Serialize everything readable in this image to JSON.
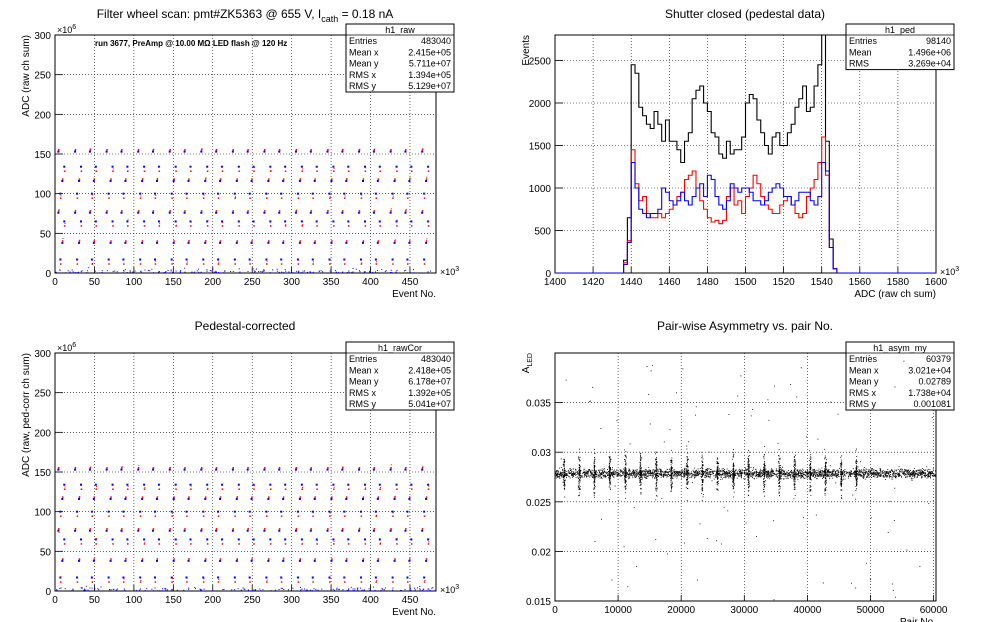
{
  "colors": {
    "black": "#000000",
    "red": "#ff0000",
    "blue": "#0000ff",
    "grid": "#000000",
    "background": "#ffffff"
  },
  "chart_data": [
    {
      "id": "raw",
      "type": "scatter",
      "title": "Filter wheel scan: pmt#ZK5363 @   655 V, I",
      "title_sub": "cath",
      "title_tail": " = 0.18 nA",
      "annotation": "run 3677, PreAmp @ 10.00 MΩ LED flash @  120 Hz",
      "xlabel": "Event No.",
      "ylabel": "ADC (raw ch sum)",
      "x_exponent": "×10",
      "x_exponent_power": "3",
      "y_exponent": "×10",
      "y_exponent_power": "6",
      "xlim": [
        0,
        483
      ],
      "ylim": [
        0,
        300
      ],
      "x_ticks": [
        0,
        50,
        100,
        150,
        200,
        250,
        300,
        350,
        400,
        450
      ],
      "y_ticks": [
        0,
        50,
        100,
        150,
        200,
        250,
        300
      ],
      "grid": true,
      "levels": [
        0,
        15,
        40,
        63,
        78,
        98,
        118,
        132,
        155
      ],
      "stats": {
        "name": "h1_raw",
        "rows": [
          {
            "label": "Entries",
            "value": "483040"
          },
          {
            "label": "Mean x",
            "value": "2.415e+05"
          },
          {
            "label": "Mean y",
            "value": "5.711e+07"
          },
          {
            "label": "RMS x",
            "value": "1.394e+05"
          },
          {
            "label": "RMS y",
            "value": "5.129e+07"
          }
        ]
      }
    },
    {
      "id": "ped",
      "type": "line",
      "title": "Shutter closed (pedestal data)",
      "xlabel": "ADC (raw ch sum)",
      "ylabel": "Events",
      "x_exponent": "×10",
      "x_exponent_power": "3",
      "xlim": [
        1400,
        1600
      ],
      "ylim": [
        0,
        2800
      ],
      "x_ticks": [
        1400,
        1420,
        1440,
        1460,
        1480,
        1500,
        1520,
        1540,
        1560,
        1580,
        1600
      ],
      "y_ticks": [
        0,
        500,
        1000,
        1500,
        2000,
        2500
      ],
      "grid": true,
      "series": [
        {
          "color": "#000000",
          "x": [
            1400,
            1412,
            1424,
            1434,
            1436,
            1438,
            1440,
            1442,
            1444,
            1446,
            1448,
            1450,
            1452,
            1454,
            1456,
            1458,
            1460,
            1462,
            1464,
            1466,
            1468,
            1470,
            1472,
            1474,
            1476,
            1478,
            1480,
            1482,
            1484,
            1486,
            1488,
            1490,
            1492,
            1494,
            1496,
            1498,
            1500,
            1502,
            1504,
            1506,
            1508,
            1510,
            1512,
            1514,
            1516,
            1518,
            1520,
            1522,
            1524,
            1526,
            1528,
            1530,
            1532,
            1534,
            1536,
            1538,
            1540,
            1542,
            1544,
            1546,
            1548,
            1550,
            1552,
            1554,
            1556,
            1600
          ],
          "y": [
            0,
            0,
            0,
            0,
            150,
            650,
            2450,
            2350,
            1950,
            1850,
            1750,
            1700,
            1900,
            1750,
            1550,
            1800,
            1550,
            1550,
            1450,
            1300,
            1550,
            1650,
            2050,
            2150,
            2200,
            2000,
            1900,
            1650,
            1600,
            1400,
            1350,
            1550,
            1400,
            1450,
            1450,
            1600,
            2000,
            2100,
            2050,
            1800,
            1650,
            1500,
            1400,
            1600,
            1650,
            1500,
            1500,
            1650,
            1750,
            1950,
            2050,
            2200,
            1900,
            1950,
            2200,
            2450,
            2800,
            1550,
            400,
            50,
            0,
            0,
            0,
            0,
            0,
            0
          ]
        },
        {
          "color": "#ff0000",
          "x": [
            1400,
            1412,
            1424,
            1434,
            1436,
            1438,
            1440,
            1442,
            1444,
            1446,
            1448,
            1450,
            1452,
            1454,
            1456,
            1458,
            1460,
            1462,
            1464,
            1466,
            1468,
            1470,
            1472,
            1474,
            1476,
            1478,
            1480,
            1482,
            1484,
            1486,
            1488,
            1490,
            1492,
            1494,
            1496,
            1498,
            1500,
            1502,
            1504,
            1506,
            1508,
            1510,
            1512,
            1514,
            1516,
            1518,
            1520,
            1522,
            1524,
            1526,
            1528,
            1530,
            1532,
            1534,
            1536,
            1538,
            1540,
            1542,
            1544,
            1546,
            1548,
            1550,
            1552,
            1554,
            1556,
            1600
          ],
          "y": [
            0,
            0,
            0,
            0,
            120,
            380,
            1450,
            1050,
            850,
            900,
            700,
            650,
            650,
            700,
            650,
            700,
            750,
            800,
            900,
            950,
            1100,
            1150,
            1200,
            1000,
            850,
            750,
            650,
            600,
            620,
            580,
            620,
            900,
            1000,
            800,
            850,
            700,
            900,
            1000,
            1150,
            1050,
            900,
            800,
            750,
            700,
            700,
            800,
            850,
            900,
            800,
            700,
            650,
            700,
            900,
            1000,
            1100,
            1300,
            1600,
            1150,
            300,
            50,
            0,
            0,
            0,
            0,
            0,
            0
          ]
        },
        {
          "color": "#0000ff",
          "x": [
            1400,
            1412,
            1424,
            1434,
            1436,
            1438,
            1440,
            1442,
            1444,
            1446,
            1448,
            1450,
            1452,
            1454,
            1456,
            1458,
            1460,
            1462,
            1464,
            1466,
            1468,
            1470,
            1472,
            1474,
            1476,
            1478,
            1480,
            1482,
            1484,
            1486,
            1488,
            1490,
            1492,
            1494,
            1496,
            1498,
            1500,
            1502,
            1504,
            1506,
            1508,
            1510,
            1512,
            1514,
            1516,
            1518,
            1520,
            1522,
            1524,
            1526,
            1528,
            1530,
            1532,
            1534,
            1536,
            1538,
            1540,
            1542,
            1544,
            1546,
            1548,
            1550,
            1552,
            1554,
            1556,
            1600
          ],
          "y": [
            0,
            0,
            0,
            0,
            100,
            360,
            1300,
            1000,
            750,
            700,
            650,
            700,
            700,
            750,
            1000,
            950,
            850,
            800,
            850,
            950,
            850,
            800,
            900,
            1000,
            1050,
            900,
            1150,
            1100,
            900,
            800,
            750,
            850,
            1050,
            1000,
            950,
            1000,
            1000,
            950,
            850,
            850,
            800,
            850,
            950,
            1000,
            1050,
            1000,
            900,
            900,
            800,
            850,
            950,
            950,
            950,
            850,
            800,
            900,
            1300,
            1200,
            300,
            50,
            0,
            0,
            0,
            0,
            0,
            0
          ]
        }
      ],
      "stats": {
        "name": "h1_ped",
        "rows": [
          {
            "label": "Entries",
            "value": "98140"
          },
          {
            "label": "Mean",
            "value": "1.496e+06"
          },
          {
            "label": "RMS",
            "value": "3.269e+04"
          }
        ]
      }
    },
    {
      "id": "rawcor",
      "type": "scatter",
      "title": "Pedestal-corrected",
      "xlabel": "Event No.",
      "ylabel": "ADC (raw, ped-corr ch sum)",
      "x_exponent": "×10",
      "x_exponent_power": "3",
      "y_exponent": "×10",
      "y_exponent_power": "6",
      "xlim": [
        0,
        483
      ],
      "ylim": [
        0,
        300
      ],
      "x_ticks": [
        0,
        50,
        100,
        150,
        200,
        250,
        300,
        350,
        400,
        450
      ],
      "y_ticks": [
        0,
        50,
        100,
        150,
        200,
        250,
        300
      ],
      "grid": true,
      "levels": [
        0,
        15,
        40,
        63,
        78,
        98,
        118,
        132,
        155
      ],
      "stats": {
        "name": "h1_rawCor",
        "rows": [
          {
            "label": "Entries",
            "value": "483040"
          },
          {
            "label": "Mean x",
            "value": "2.418e+05"
          },
          {
            "label": "Mean y",
            "value": "6.178e+07"
          },
          {
            "label": "RMS x",
            "value": "1.392e+05"
          },
          {
            "label": "RMS y",
            "value": "5.041e+07"
          }
        ]
      }
    },
    {
      "id": "asym",
      "type": "scatter",
      "title": "Pair-wise Asymmetry vs. pair No.",
      "xlabel": "Pair No.",
      "ylabel": "A",
      "ylabel_sub": "LED",
      "xlim": [
        0,
        60379
      ],
      "ylim": [
        0.015,
        0.04
      ],
      "x_ticks": [
        0,
        10000,
        20000,
        30000,
        40000,
        50000,
        60000
      ],
      "y_ticks": [
        0.015,
        0.02,
        0.025,
        0.03,
        0.035
      ],
      "y_tick_labels": [
        "0.015",
        "0.02",
        "0.025",
        "0.03",
        "0.035"
      ],
      "grid": true,
      "band_center": 0.0279,
      "band_halfwidth": 0.0008,
      "spike_x": [
        1400,
        3800,
        6200,
        8600,
        11100,
        13500,
        16000,
        18400,
        20900,
        23300,
        25700,
        28200,
        30600,
        33100,
        35500,
        37900,
        40400,
        42800,
        45300,
        47700
      ],
      "stats": {
        "name": "h1_asym_my",
        "rows": [
          {
            "label": "Entries",
            "value": "60379"
          },
          {
            "label": "Mean x",
            "value": "3.021e+04"
          },
          {
            "label": "Mean y",
            "value": "0.02789"
          },
          {
            "label": "RMS x",
            "value": "1.738e+04"
          },
          {
            "label": "RMS y",
            "value": "0.001081"
          }
        ]
      }
    }
  ]
}
